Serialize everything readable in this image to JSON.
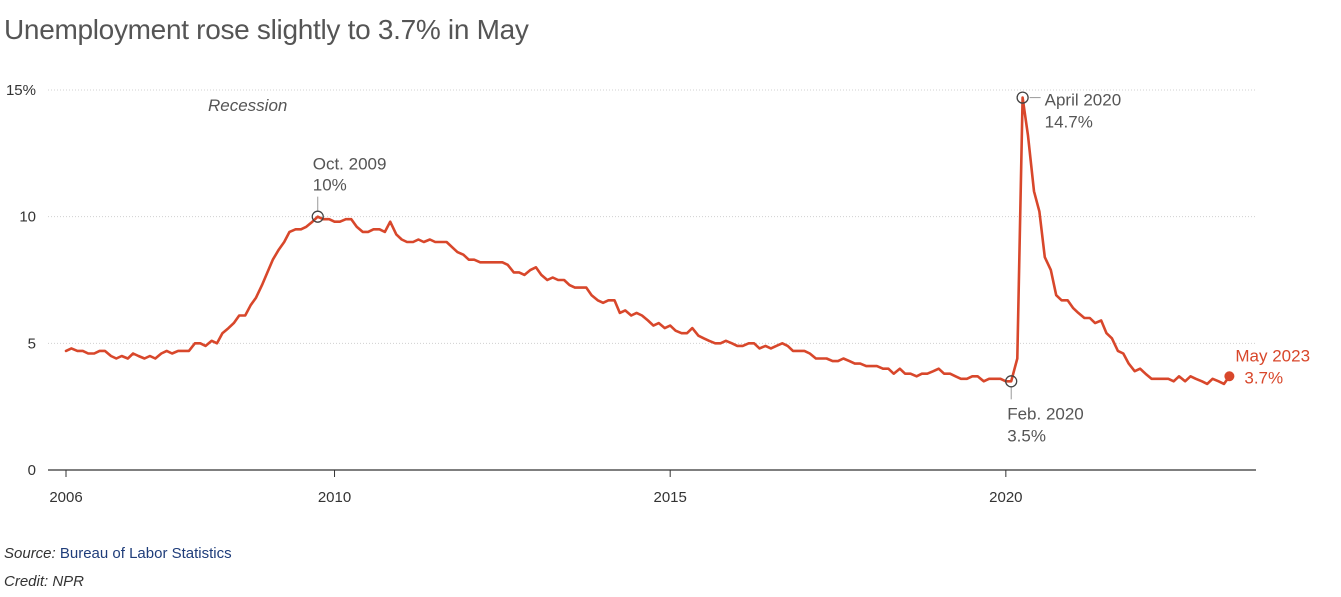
{
  "title": "Unemployment rose slightly to 3.7% in May",
  "footer": {
    "source_label": "Source:",
    "source_name": "Bureau of Labor Statistics",
    "credit": "Credit: NPR"
  },
  "colors": {
    "line": "#d8472b",
    "text": "#555555",
    "grid": "#d0d0d0",
    "axis": "#333333"
  },
  "chart_data": {
    "type": "line",
    "title": "Unemployment rose slightly to 3.7% in May",
    "xlabel": "",
    "ylabel": "",
    "xlim": [
      2006,
      2023.5
    ],
    "ylim": [
      0,
      15
    ],
    "y_ticks": [
      {
        "value": 0,
        "label": "0"
      },
      {
        "value": 5,
        "label": "5"
      },
      {
        "value": 10,
        "label": "10"
      },
      {
        "value": 15,
        "label": "15%"
      }
    ],
    "x_ticks": [
      {
        "value": 2006,
        "label": "2006"
      },
      {
        "value": 2010,
        "label": "2010"
      },
      {
        "value": 2015,
        "label": "2015"
      },
      {
        "value": 2020,
        "label": "2020"
      }
    ],
    "grid": true,
    "recession_label": "Recession",
    "series": [
      {
        "points": [
          [
            2006.0,
            4.7
          ],
          [
            2006.08,
            4.8
          ],
          [
            2006.17,
            4.7
          ],
          [
            2006.25,
            4.7
          ],
          [
            2006.33,
            4.6
          ],
          [
            2006.42,
            4.6
          ],
          [
            2006.5,
            4.7
          ],
          [
            2006.58,
            4.7
          ],
          [
            2006.67,
            4.5
          ],
          [
            2006.75,
            4.4
          ],
          [
            2006.83,
            4.5
          ],
          [
            2006.92,
            4.4
          ],
          [
            2007.0,
            4.6
          ],
          [
            2007.08,
            4.5
          ],
          [
            2007.17,
            4.4
          ],
          [
            2007.25,
            4.5
          ],
          [
            2007.33,
            4.4
          ],
          [
            2007.42,
            4.6
          ],
          [
            2007.5,
            4.7
          ],
          [
            2007.58,
            4.6
          ],
          [
            2007.67,
            4.7
          ],
          [
            2007.75,
            4.7
          ],
          [
            2007.83,
            4.7
          ],
          [
            2007.92,
            5.0
          ],
          [
            2008.0,
            5.0
          ],
          [
            2008.08,
            4.9
          ],
          [
            2008.17,
            5.1
          ],
          [
            2008.25,
            5.0
          ],
          [
            2008.33,
            5.4
          ],
          [
            2008.42,
            5.6
          ],
          [
            2008.5,
            5.8
          ],
          [
            2008.58,
            6.1
          ],
          [
            2008.67,
            6.1
          ],
          [
            2008.75,
            6.5
          ],
          [
            2008.83,
            6.8
          ],
          [
            2008.92,
            7.3
          ],
          [
            2009.0,
            7.8
          ],
          [
            2009.08,
            8.3
          ],
          [
            2009.17,
            8.7
          ],
          [
            2009.25,
            9.0
          ],
          [
            2009.33,
            9.4
          ],
          [
            2009.42,
            9.5
          ],
          [
            2009.5,
            9.5
          ],
          [
            2009.58,
            9.6
          ],
          [
            2009.67,
            9.8
          ],
          [
            2009.75,
            10.0
          ],
          [
            2009.83,
            9.9
          ],
          [
            2009.92,
            9.9
          ],
          [
            2010.0,
            9.8
          ],
          [
            2010.08,
            9.8
          ],
          [
            2010.17,
            9.9
          ],
          [
            2010.25,
            9.9
          ],
          [
            2010.33,
            9.6
          ],
          [
            2010.42,
            9.4
          ],
          [
            2010.5,
            9.4
          ],
          [
            2010.58,
            9.5
          ],
          [
            2010.67,
            9.5
          ],
          [
            2010.75,
            9.4
          ],
          [
            2010.83,
            9.8
          ],
          [
            2010.92,
            9.3
          ],
          [
            2011.0,
            9.1
          ],
          [
            2011.08,
            9.0
          ],
          [
            2011.17,
            9.0
          ],
          [
            2011.25,
            9.1
          ],
          [
            2011.33,
            9.0
          ],
          [
            2011.42,
            9.1
          ],
          [
            2011.5,
            9.0
          ],
          [
            2011.58,
            9.0
          ],
          [
            2011.67,
            9.0
          ],
          [
            2011.75,
            8.8
          ],
          [
            2011.83,
            8.6
          ],
          [
            2011.92,
            8.5
          ],
          [
            2012.0,
            8.3
          ],
          [
            2012.08,
            8.3
          ],
          [
            2012.17,
            8.2
          ],
          [
            2012.25,
            8.2
          ],
          [
            2012.33,
            8.2
          ],
          [
            2012.42,
            8.2
          ],
          [
            2012.5,
            8.2
          ],
          [
            2012.58,
            8.1
          ],
          [
            2012.67,
            7.8
          ],
          [
            2012.75,
            7.8
          ],
          [
            2012.83,
            7.7
          ],
          [
            2012.92,
            7.9
          ],
          [
            2013.0,
            8.0
          ],
          [
            2013.08,
            7.7
          ],
          [
            2013.17,
            7.5
          ],
          [
            2013.25,
            7.6
          ],
          [
            2013.33,
            7.5
          ],
          [
            2013.42,
            7.5
          ],
          [
            2013.5,
            7.3
          ],
          [
            2013.58,
            7.2
          ],
          [
            2013.67,
            7.2
          ],
          [
            2013.75,
            7.2
          ],
          [
            2013.83,
            6.9
          ],
          [
            2013.92,
            6.7
          ],
          [
            2014.0,
            6.6
          ],
          [
            2014.08,
            6.7
          ],
          [
            2014.17,
            6.7
          ],
          [
            2014.25,
            6.2
          ],
          [
            2014.33,
            6.3
          ],
          [
            2014.42,
            6.1
          ],
          [
            2014.5,
            6.2
          ],
          [
            2014.58,
            6.1
          ],
          [
            2014.67,
            5.9
          ],
          [
            2014.75,
            5.7
          ],
          [
            2014.83,
            5.8
          ],
          [
            2014.92,
            5.6
          ],
          [
            2015.0,
            5.7
          ],
          [
            2015.08,
            5.5
          ],
          [
            2015.17,
            5.4
          ],
          [
            2015.25,
            5.4
          ],
          [
            2015.33,
            5.6
          ],
          [
            2015.42,
            5.3
          ],
          [
            2015.5,
            5.2
          ],
          [
            2015.58,
            5.1
          ],
          [
            2015.67,
            5.0
          ],
          [
            2015.75,
            5.0
          ],
          [
            2015.83,
            5.1
          ],
          [
            2015.92,
            5.0
          ],
          [
            2016.0,
            4.9
          ],
          [
            2016.08,
            4.9
          ],
          [
            2016.17,
            5.0
          ],
          [
            2016.25,
            5.0
          ],
          [
            2016.33,
            4.8
          ],
          [
            2016.42,
            4.9
          ],
          [
            2016.5,
            4.8
          ],
          [
            2016.58,
            4.9
          ],
          [
            2016.67,
            5.0
          ],
          [
            2016.75,
            4.9
          ],
          [
            2016.83,
            4.7
          ],
          [
            2016.92,
            4.7
          ],
          [
            2017.0,
            4.7
          ],
          [
            2017.08,
            4.6
          ],
          [
            2017.17,
            4.4
          ],
          [
            2017.25,
            4.4
          ],
          [
            2017.33,
            4.4
          ],
          [
            2017.42,
            4.3
          ],
          [
            2017.5,
            4.3
          ],
          [
            2017.58,
            4.4
          ],
          [
            2017.67,
            4.3
          ],
          [
            2017.75,
            4.2
          ],
          [
            2017.83,
            4.2
          ],
          [
            2017.92,
            4.1
          ],
          [
            2018.0,
            4.1
          ],
          [
            2018.08,
            4.1
          ],
          [
            2018.17,
            4.0
          ],
          [
            2018.25,
            4.0
          ],
          [
            2018.33,
            3.8
          ],
          [
            2018.42,
            4.0
          ],
          [
            2018.5,
            3.8
          ],
          [
            2018.58,
            3.8
          ],
          [
            2018.67,
            3.7
          ],
          [
            2018.75,
            3.8
          ],
          [
            2018.83,
            3.8
          ],
          [
            2018.92,
            3.9
          ],
          [
            2019.0,
            4.0
          ],
          [
            2019.08,
            3.8
          ],
          [
            2019.17,
            3.8
          ],
          [
            2019.25,
            3.7
          ],
          [
            2019.33,
            3.6
          ],
          [
            2019.42,
            3.6
          ],
          [
            2019.5,
            3.7
          ],
          [
            2019.58,
            3.7
          ],
          [
            2019.67,
            3.5
          ],
          [
            2019.75,
            3.6
          ],
          [
            2019.83,
            3.6
          ],
          [
            2019.92,
            3.6
          ],
          [
            2020.0,
            3.5
          ],
          [
            2020.08,
            3.5
          ],
          [
            2020.17,
            4.4
          ],
          [
            2020.25,
            14.7
          ],
          [
            2020.33,
            13.2
          ],
          [
            2020.42,
            11.0
          ],
          [
            2020.5,
            10.2
          ],
          [
            2020.58,
            8.4
          ],
          [
            2020.67,
            7.9
          ],
          [
            2020.75,
            6.9
          ],
          [
            2020.83,
            6.7
          ],
          [
            2020.92,
            6.7
          ],
          [
            2021.0,
            6.4
          ],
          [
            2021.08,
            6.2
          ],
          [
            2021.17,
            6.0
          ],
          [
            2021.25,
            6.0
          ],
          [
            2021.33,
            5.8
          ],
          [
            2021.42,
            5.9
          ],
          [
            2021.5,
            5.4
          ],
          [
            2021.58,
            5.2
          ],
          [
            2021.67,
            4.7
          ],
          [
            2021.75,
            4.6
          ],
          [
            2021.83,
            4.2
          ],
          [
            2021.92,
            3.9
          ],
          [
            2022.0,
            4.0
          ],
          [
            2022.08,
            3.8
          ],
          [
            2022.17,
            3.6
          ],
          [
            2022.25,
            3.6
          ],
          [
            2022.33,
            3.6
          ],
          [
            2022.42,
            3.6
          ],
          [
            2022.5,
            3.5
          ],
          [
            2022.58,
            3.7
          ],
          [
            2022.67,
            3.5
          ],
          [
            2022.75,
            3.7
          ],
          [
            2022.83,
            3.6
          ],
          [
            2022.92,
            3.5
          ],
          [
            2023.0,
            3.4
          ],
          [
            2023.08,
            3.6
          ],
          [
            2023.17,
            3.5
          ],
          [
            2023.25,
            3.4
          ],
          [
            2023.33,
            3.7
          ]
        ]
      }
    ],
    "annotations": [
      {
        "x": 2009.75,
        "y": 10.0,
        "date": "Oct. 2009",
        "value": "10%"
      },
      {
        "x": 2020.25,
        "y": 14.7,
        "date": "April 2020",
        "value": "14.7%"
      },
      {
        "x": 2020.08,
        "y": 3.5,
        "date": "Feb. 2020",
        "value": "3.5%"
      },
      {
        "x": 2023.33,
        "y": 3.7,
        "date": "May 2023",
        "value": "3.7%"
      }
    ]
  }
}
